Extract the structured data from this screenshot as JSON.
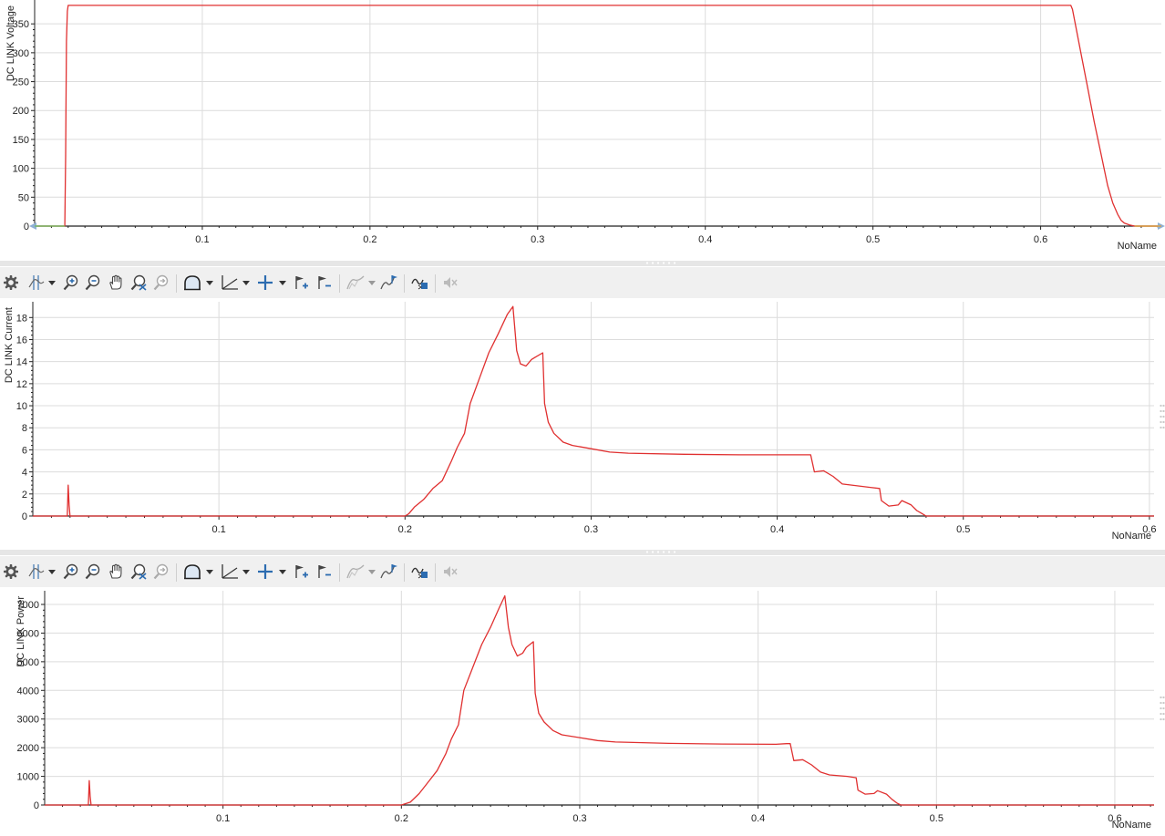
{
  "charts": [
    {
      "ylabel": "DC LINK Voltage",
      "xlabel": "NoName",
      "yticks": [
        0,
        50,
        100,
        150,
        200,
        250,
        300,
        350
      ],
      "xticks": [
        0.1,
        0.2,
        0.3,
        0.4,
        0.5,
        0.6
      ],
      "xlim": [
        0.0,
        0.672
      ],
      "ylim": [
        0,
        385
      ]
    },
    {
      "ylabel": "DC LINK Current",
      "xlabel": "NoName",
      "yticks": [
        0,
        2,
        4,
        6,
        8,
        10,
        12,
        14,
        16,
        18
      ],
      "xticks": [
        0.1,
        0.2,
        0.3,
        0.4,
        0.5,
        0.6
      ],
      "xlim": [
        0.0,
        0.6025
      ],
      "ylim": [
        0,
        19.1
      ]
    },
    {
      "ylabel": "DC LINK Power",
      "xlabel": "NoName",
      "yticks": [
        0,
        1000,
        2000,
        3000,
        4000,
        5000,
        6000,
        7000
      ],
      "xticks": [
        0.1,
        0.2,
        0.3,
        0.4,
        0.5,
        0.6
      ],
      "xlim": [
        0.0,
        0.622
      ],
      "ylim": [
        0,
        7350
      ]
    }
  ],
  "chart_data": [
    {
      "type": "line",
      "title": "",
      "xlabel": "NoName",
      "ylabel": "DC LINK Voltage",
      "xlim": [
        0.0,
        0.672
      ],
      "ylim": [
        0,
        385
      ],
      "grid": true,
      "series": [
        {
          "color": "#e03030",
          "x": [
            0.0,
            0.018,
            0.0185,
            0.019,
            0.0195,
            0.02,
            0.1,
            0.2,
            0.3,
            0.4,
            0.5,
            0.6,
            0.618,
            0.619,
            0.621,
            0.624,
            0.628,
            0.632,
            0.636,
            0.64,
            0.643,
            0.646,
            0.648,
            0.65,
            0.653,
            0.656,
            0.66,
            0.672
          ],
          "y": [
            0,
            0,
            120,
            320,
            372,
            382,
            382,
            382,
            382,
            382,
            382,
            382,
            382,
            375,
            345,
            300,
            240,
            180,
            125,
            70,
            40,
            20,
            10,
            5,
            2,
            0,
            0,
            0
          ]
        }
      ]
    },
    {
      "type": "line",
      "title": "",
      "xlabel": "NoName",
      "ylabel": "DC LINK Current",
      "xlim": [
        0.0,
        0.6025
      ],
      "ylim": [
        0,
        19.1
      ],
      "grid": true,
      "series": [
        {
          "color": "#e03030",
          "x": [
            0.0,
            0.0185,
            0.019,
            0.0195,
            0.02,
            0.1,
            0.2,
            0.202,
            0.205,
            0.21,
            0.215,
            0.22,
            0.225,
            0.228,
            0.232,
            0.235,
            0.24,
            0.245,
            0.25,
            0.255,
            0.258,
            0.26,
            0.262,
            0.265,
            0.268,
            0.27,
            0.274,
            0.275,
            0.277,
            0.28,
            0.285,
            0.29,
            0.3,
            0.31,
            0.32,
            0.35,
            0.38,
            0.41,
            0.418,
            0.42,
            0.425,
            0.43,
            0.435,
            0.44,
            0.45,
            0.455,
            0.456,
            0.46,
            0.465,
            0.467,
            0.472,
            0.475,
            0.478,
            0.48,
            0.5,
            0.6025
          ],
          "y": [
            0,
            0,
            2.8,
            1.0,
            0,
            0,
            0,
            0.2,
            0.8,
            1.5,
            2.5,
            3.2,
            5.0,
            6.2,
            7.5,
            10.2,
            12.5,
            14.8,
            16.5,
            18.3,
            19.0,
            15.0,
            13.8,
            13.6,
            14.2,
            14.4,
            14.8,
            10.2,
            8.5,
            7.5,
            6.7,
            6.4,
            6.1,
            5.8,
            5.7,
            5.6,
            5.55,
            5.55,
            5.55,
            4.0,
            4.1,
            3.6,
            2.9,
            2.8,
            2.6,
            2.5,
            1.4,
            0.9,
            1.0,
            1.4,
            1.0,
            0.5,
            0.2,
            0,
            0,
            0
          ]
        }
      ]
    },
    {
      "type": "line",
      "title": "",
      "xlabel": "NoName",
      "ylabel": "DC LINK Power",
      "xlim": [
        0.0,
        0.622
      ],
      "ylim": [
        0,
        7350
      ],
      "grid": true,
      "series": [
        {
          "color": "#e03030",
          "x": [
            0.0,
            0.0245,
            0.025,
            0.0255,
            0.026,
            0.1,
            0.2,
            0.205,
            0.21,
            0.215,
            0.22,
            0.225,
            0.228,
            0.232,
            0.235,
            0.24,
            0.245,
            0.25,
            0.255,
            0.258,
            0.26,
            0.262,
            0.265,
            0.268,
            0.27,
            0.274,
            0.275,
            0.277,
            0.28,
            0.285,
            0.29,
            0.3,
            0.31,
            0.32,
            0.35,
            0.38,
            0.41,
            0.416,
            0.418,
            0.42,
            0.425,
            0.43,
            0.435,
            0.44,
            0.45,
            0.455,
            0.456,
            0.46,
            0.465,
            0.467,
            0.472,
            0.475,
            0.478,
            0.48,
            0.5,
            0.622
          ],
          "y": [
            0,
            0,
            850,
            300,
            0,
            0,
            0,
            100,
            400,
            800,
            1200,
            1800,
            2300,
            2800,
            4000,
            4800,
            5600,
            6200,
            6900,
            7300,
            6200,
            5600,
            5200,
            5300,
            5500,
            5700,
            3900,
            3200,
            2900,
            2600,
            2450,
            2350,
            2250,
            2200,
            2150,
            2130,
            2120,
            2140,
            2140,
            1550,
            1580,
            1400,
            1150,
            1050,
            1000,
            950,
            520,
            380,
            400,
            500,
            380,
            200,
            60,
            0,
            0,
            0
          ]
        }
      ]
    }
  ]
}
